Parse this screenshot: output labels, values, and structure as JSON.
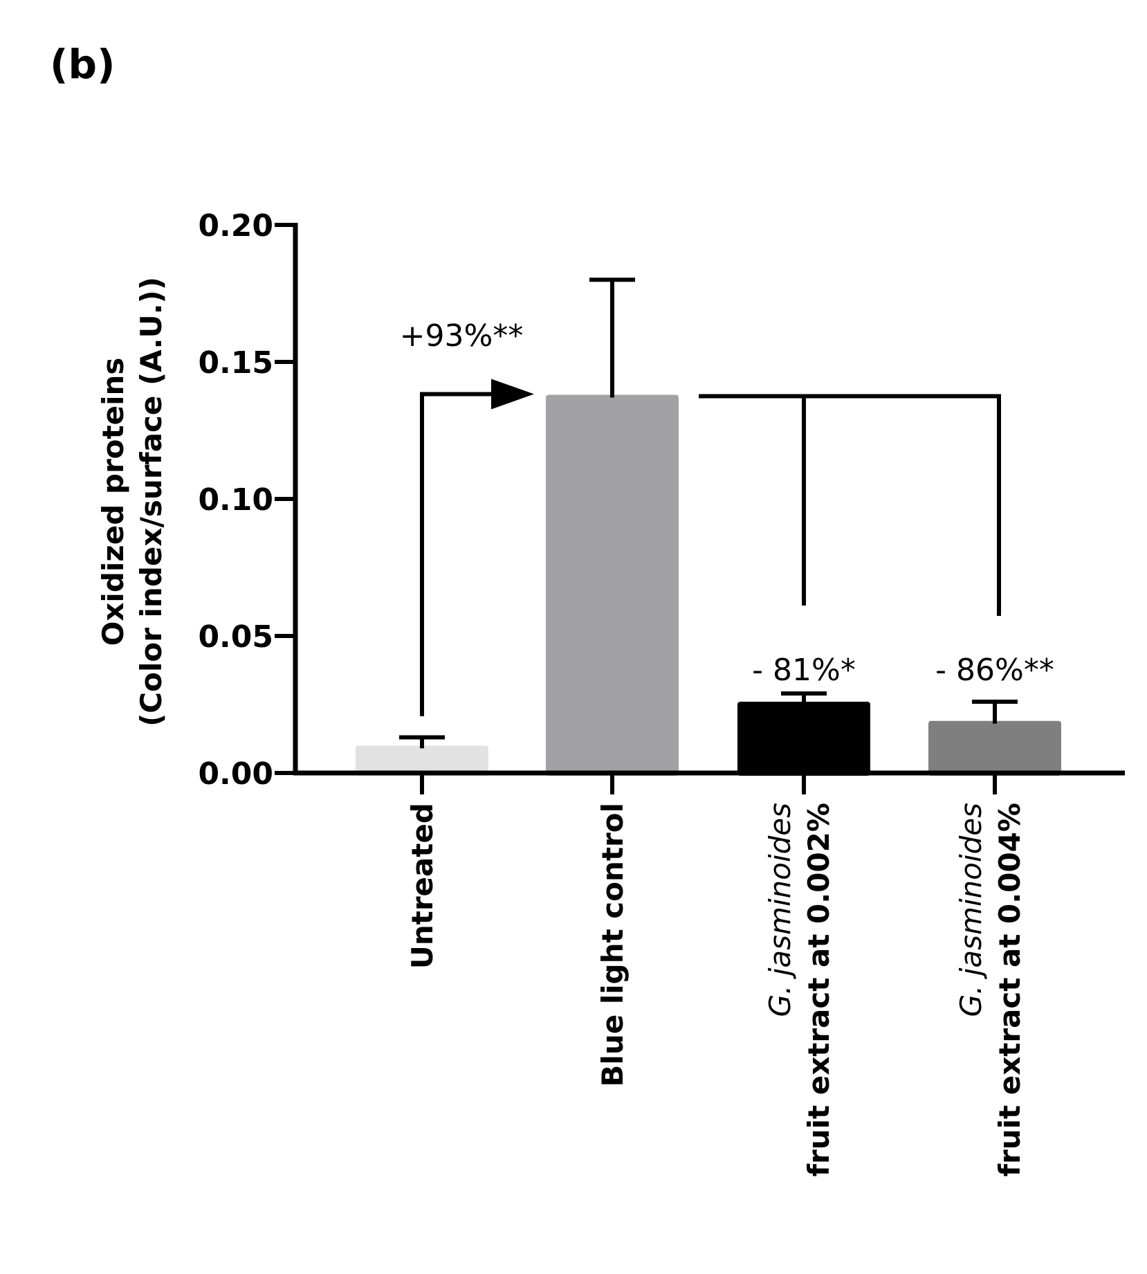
{
  "chart_data": {
    "type": "bar",
    "panel_label": "(b)",
    "ylabel_line1": "Oxidized proteins",
    "ylabel_line2": "(Color index/surface (A.U.))",
    "ylim": [
      0,
      0.2
    ],
    "yticks": [
      {
        "value": 0.0,
        "label": "0.00"
      },
      {
        "value": 0.05,
        "label": "0.05"
      },
      {
        "value": 0.1,
        "label": "0.10"
      },
      {
        "value": 0.15,
        "label": "0.15"
      },
      {
        "value": 0.2,
        "label": "0.20"
      }
    ],
    "categories": [
      {
        "line1": "Untreated",
        "line1_style": "bold"
      },
      {
        "line1": "Blue light control",
        "line1_style": "bold"
      },
      {
        "line1": "G. jasminoides",
        "line1_style": "italic",
        "line2": "fruit extract at 0.002%"
      },
      {
        "line1": "G. jasminoides",
        "line1_style": "italic",
        "line2": "fruit extract at 0.004%"
      }
    ],
    "values": [
      0.009,
      0.137,
      0.025,
      0.018
    ],
    "errors": [
      0.004,
      0.043,
      0.004,
      0.008
    ],
    "bar_colors": [
      "#e2e2e2",
      "#a2a2a6",
      "#000000",
      "#7f7f7f"
    ],
    "annotations": {
      "increase": "+93%**",
      "decrease_1": "- 81%*",
      "decrease_2": "- 86%**"
    }
  }
}
